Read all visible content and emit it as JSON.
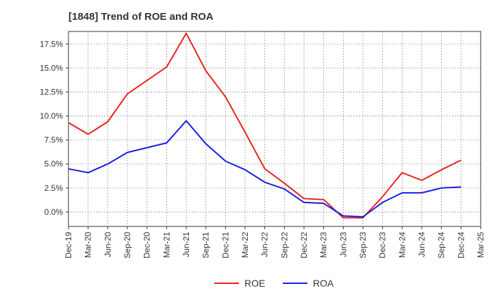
{
  "chart_data": {
    "type": "line",
    "title": "[1848]  Trend of ROE and ROA",
    "xlabel": "",
    "ylabel": "",
    "categories": [
      "Dec-19",
      "Mar-20",
      "Jun-20",
      "Sep-20",
      "Dec-20",
      "Mar-21",
      "Jun-21",
      "Sep-21",
      "Dec-21",
      "Mar-22",
      "Jun-22",
      "Sep-22",
      "Dec-22",
      "Mar-23",
      "Jun-23",
      "Sep-23",
      "Dec-23",
      "Mar-24",
      "Jun-24",
      "Sep-24",
      "Dec-24",
      "Mar-25"
    ],
    "ylim": [
      -1.5,
      18.8
    ],
    "yticks": [
      0,
      2.5,
      5,
      7.5,
      10,
      12.5,
      15,
      17.5
    ],
    "ytick_labels": [
      "0.0%",
      "2.5%",
      "5.0%",
      "7.5%",
      "10.0%",
      "12.5%",
      "15.0%",
      "17.5%"
    ],
    "grid": true,
    "legend_position": "bottom",
    "series": [
      {
        "name": "ROE",
        "color": "#e8211a",
        "values": [
          9.3,
          8.1,
          9.4,
          12.3,
          13.7,
          15.1,
          18.6,
          14.7,
          12.0,
          8.3,
          4.5,
          3.0,
          1.4,
          1.3,
          -0.6,
          -0.6,
          1.6,
          4.1,
          3.3,
          4.4,
          5.4,
          null
        ]
      },
      {
        "name": "ROA",
        "color": "#1a1ae0",
        "values": [
          4.5,
          4.1,
          5.0,
          6.2,
          6.7,
          7.2,
          9.5,
          7.1,
          5.3,
          4.4,
          3.1,
          2.4,
          1.0,
          0.9,
          -0.4,
          -0.5,
          1.0,
          2.0,
          2.0,
          2.5,
          2.6,
          null
        ]
      }
    ]
  }
}
